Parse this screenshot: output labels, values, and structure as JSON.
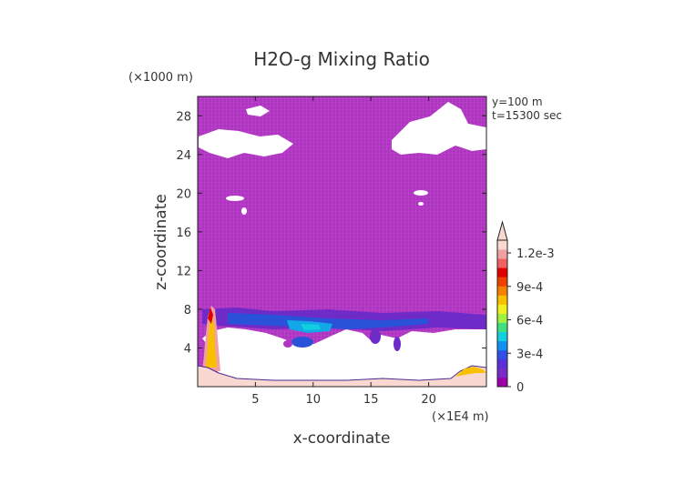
{
  "chart_data": {
    "type": "heatmap",
    "title": "H2O-g Mixing Ratio",
    "xlabel": "x-coordinate",
    "ylabel": "z-coordinate",
    "x_unit": "(×1E4 m)",
    "y_unit": "(×1000 m)",
    "annotations": [
      "y=100 m",
      "t=15300 sec"
    ],
    "xlim": [
      0,
      25
    ],
    "ylim": [
      0,
      30
    ],
    "xticks": [
      5,
      10,
      15,
      20
    ],
    "yticks": [
      4,
      8,
      12,
      16,
      20,
      24,
      28
    ],
    "grid": false,
    "colorbar": {
      "position": "right",
      "min": 0,
      "max": 0.0012,
      "tick_values": [
        0,
        0.0003,
        0.0006,
        0.0009,
        0.0012
      ],
      "tick_labels": [
        "0",
        "3e-4",
        "6e-4",
        "9e-4",
        "1.2e-3"
      ],
      "extend": "max",
      "colors": [
        "#9c00a8",
        "#7a2cc8",
        "#5a30d8",
        "#3050e8",
        "#1090f0",
        "#10d0e0",
        "#40e080",
        "#a0f040",
        "#f0f020",
        "#f8c000",
        "#f88000",
        "#f04000",
        "#e00000",
        "#f06060",
        "#f0a0a0",
        "#f8d8d0"
      ]
    },
    "fields": {
      "background_fill": "#b030c0",
      "upper_band_z_range": [
        0,
        8
      ],
      "dry_region_z_range": [
        1,
        6
      ],
      "surface_moist_layer_z_max": 1.5
    }
  }
}
